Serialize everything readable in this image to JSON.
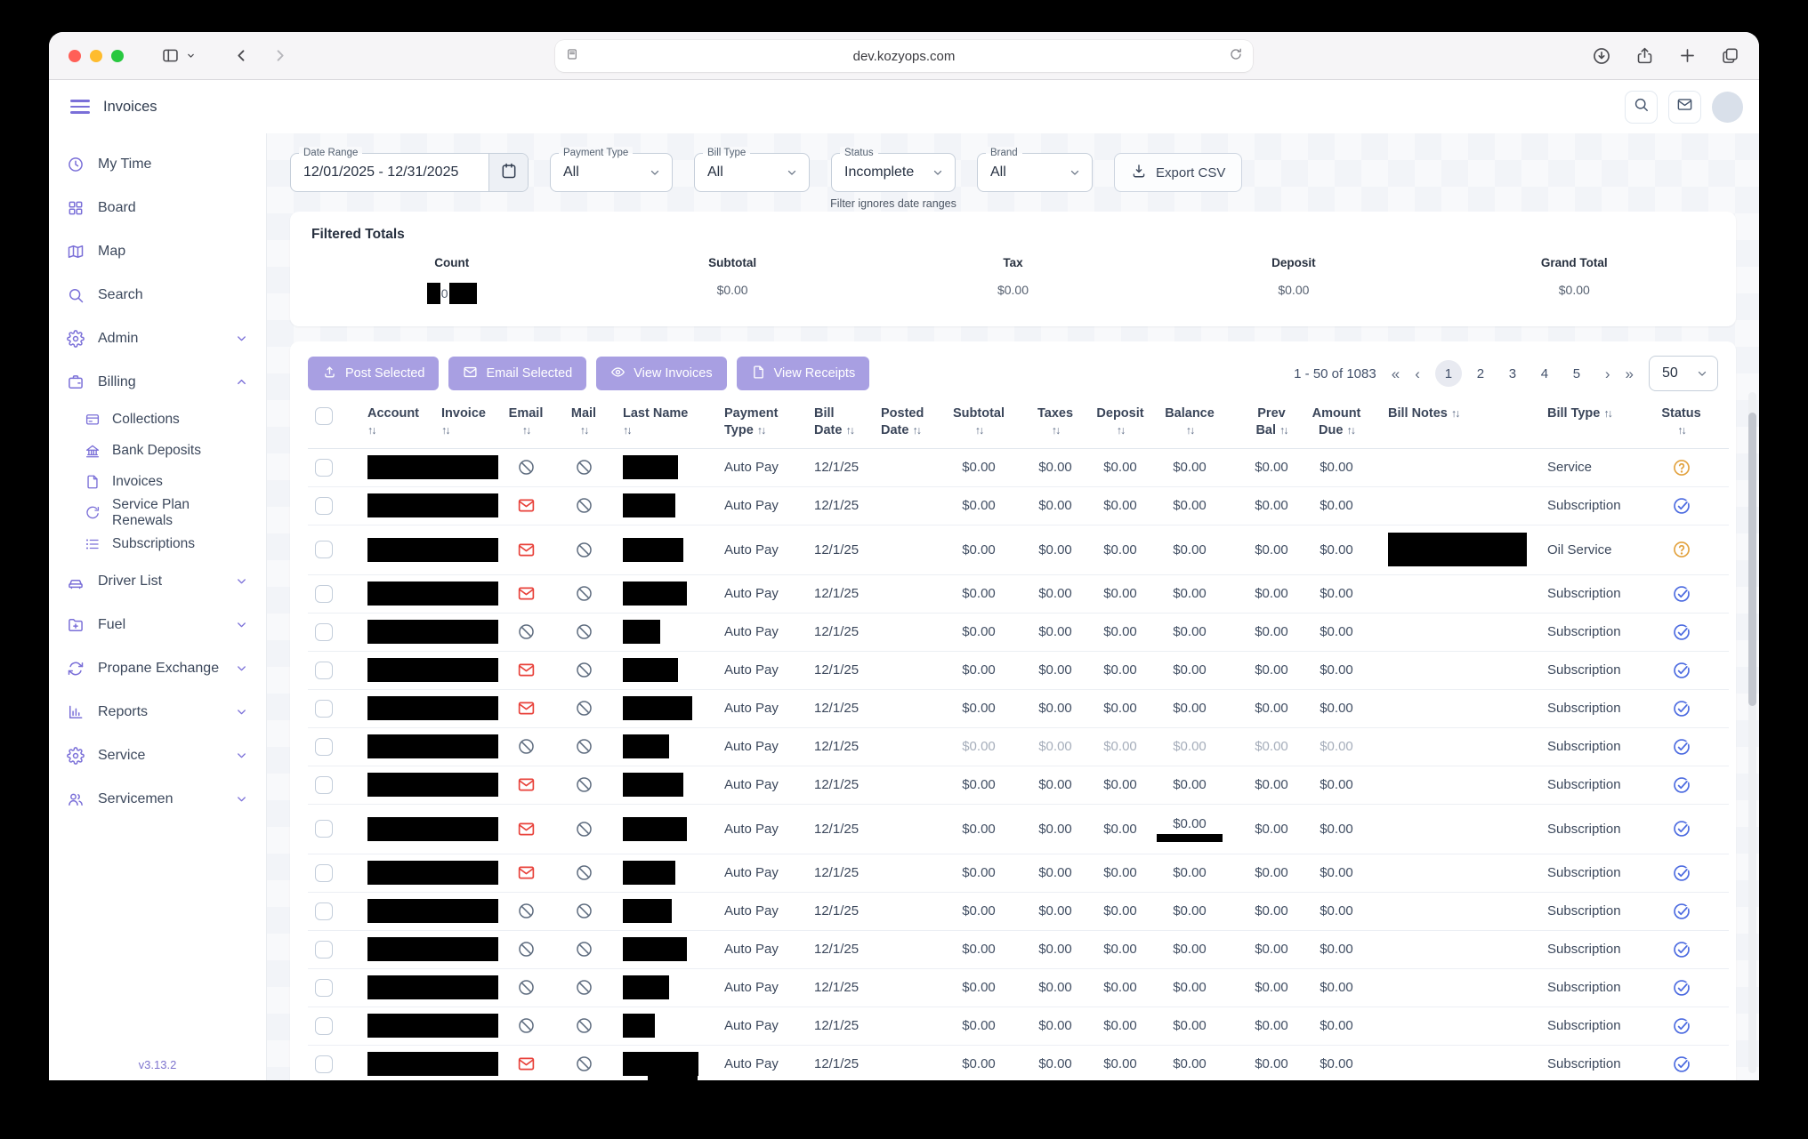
{
  "browser": {
    "url": "dev.kozyops.com"
  },
  "header": {
    "title": "Invoices"
  },
  "sidebar": {
    "version": "v3.13.2",
    "items": [
      {
        "label": "My Time",
        "icon": "clock"
      },
      {
        "label": "Board",
        "icon": "grid"
      },
      {
        "label": "Map",
        "icon": "map"
      },
      {
        "label": "Search",
        "icon": "search"
      },
      {
        "label": "Admin",
        "icon": "gear",
        "chevron": "down"
      },
      {
        "label": "Billing",
        "icon": "wallet",
        "chevron": "up",
        "children": [
          {
            "label": "Collections",
            "icon": "card"
          },
          {
            "label": "Bank Deposits",
            "icon": "bank"
          },
          {
            "label": "Invoices",
            "icon": "file"
          },
          {
            "label": "Service Plan Renewals",
            "icon": "renew"
          },
          {
            "label": "Subscriptions",
            "icon": "list"
          }
        ]
      },
      {
        "label": "Driver List",
        "icon": "car",
        "chevron": "down"
      },
      {
        "label": "Fuel",
        "icon": "folderplus",
        "chevron": "down"
      },
      {
        "label": "Propane Exchange",
        "icon": "refresh",
        "chevron": "down"
      },
      {
        "label": "Reports",
        "icon": "chart",
        "chevron": "down"
      },
      {
        "label": "Service",
        "icon": "gear",
        "chevron": "down"
      },
      {
        "label": "Servicemen",
        "icon": "users",
        "chevron": "down"
      }
    ]
  },
  "filters": {
    "date_range": {
      "label": "Date Range",
      "value": "12/01/2025 - 12/31/2025"
    },
    "payment_type": {
      "label": "Payment Type",
      "value": "All"
    },
    "bill_type": {
      "label": "Bill Type",
      "value": "All"
    },
    "status": {
      "label": "Status",
      "value": "Incomplete",
      "helper": "Filter ignores date ranges"
    },
    "brand": {
      "label": "Brand",
      "value": "All"
    },
    "export_label": "Export CSV"
  },
  "totals": {
    "title": "Filtered Totals",
    "columns": [
      {
        "label": "Count",
        "value": "0",
        "redacted": true
      },
      {
        "label": "Subtotal",
        "value": "$0.00"
      },
      {
        "label": "Tax",
        "value": "$0.00"
      },
      {
        "label": "Deposit",
        "value": "$0.00"
      },
      {
        "label": "Grand Total",
        "value": "$0.00"
      }
    ]
  },
  "toolbar": {
    "buttons": [
      {
        "label": "Post Selected",
        "icon": "upload"
      },
      {
        "label": "Email Selected",
        "icon": "envelope"
      },
      {
        "label": "View Invoices",
        "icon": "eye"
      },
      {
        "label": "View Receipts",
        "icon": "file"
      }
    ]
  },
  "pagination": {
    "range": "1 - 50 of 1083",
    "pages": [
      "1",
      "2",
      "3",
      "4",
      "5"
    ],
    "current": "1",
    "page_size": "50"
  },
  "table": {
    "columns": [
      {
        "key": "select",
        "label": ""
      },
      {
        "key": "account",
        "label": "Account",
        "sortable": true
      },
      {
        "key": "invoice",
        "label": "Invoice",
        "sortable": true
      },
      {
        "key": "email",
        "label": "Email",
        "sortable": true
      },
      {
        "key": "mail",
        "label": "Mail",
        "sortable": true
      },
      {
        "key": "last_name",
        "label": "Last Name",
        "sortable": true
      },
      {
        "key": "payment_type",
        "label": "Payment Type",
        "sortable": true
      },
      {
        "key": "bill_date",
        "label": "Bill Date",
        "sortable": true
      },
      {
        "key": "posted_date",
        "label": "Posted Date",
        "sortable": true
      },
      {
        "key": "subtotal",
        "label": "Subtotal",
        "sortable": true
      },
      {
        "key": "taxes",
        "label": "Taxes",
        "sortable": true
      },
      {
        "key": "deposit",
        "label": "Deposit",
        "sortable": true
      },
      {
        "key": "balance",
        "label": "Balance",
        "sortable": true
      },
      {
        "key": "prev_bal",
        "label": "Prev Bal",
        "sortable": true
      },
      {
        "key": "amount_due",
        "label": "Amount Due",
        "sortable": true
      },
      {
        "key": "bill_notes",
        "label": "Bill Notes",
        "sortable": true
      },
      {
        "key": "bill_type",
        "label": "Bill Type",
        "sortable": true
      },
      {
        "key": "status",
        "label": "Status",
        "sortable": true
      }
    ],
    "rows": [
      {
        "account_redacted": true,
        "email": "blocked",
        "mail": "blocked",
        "last_name_redact_w": 62,
        "payment_type": "Auto Pay",
        "bill_date": "12/1/25",
        "posted_date": "",
        "subtotal": "$0.00",
        "taxes": "$0.00",
        "deposit": "$0.00",
        "balance": "$0.00",
        "prev_bal": "$0.00",
        "amount_due": "$0.00",
        "bill_notes_redacted": false,
        "bill_type": "Service",
        "status": "question"
      },
      {
        "account_redacted": true,
        "email": "mail",
        "mail": "blocked",
        "last_name_redact_w": 59,
        "payment_type": "Auto Pay",
        "bill_date": "12/1/25",
        "posted_date": "",
        "subtotal": "$0.00",
        "taxes": "$0.00",
        "deposit": "$0.00",
        "balance": "$0.00",
        "prev_bal": "$0.00",
        "amount_due": "$0.00",
        "bill_notes_redacted": false,
        "bill_type": "Subscription",
        "status": "check"
      },
      {
        "account_redacted": true,
        "email": "mail",
        "mail": "blocked",
        "last_name_redact_w": 68,
        "payment_type": "Auto Pay",
        "bill_date": "12/1/25",
        "posted_date": "",
        "subtotal": "$0.00",
        "taxes": "$0.00",
        "deposit": "$0.00",
        "balance": "$0.00",
        "prev_bal": "$0.00",
        "amount_due": "$0.00",
        "bill_notes_redacted": true,
        "bill_type": "Oil Service",
        "status": "question",
        "tall": true
      },
      {
        "account_redacted": true,
        "email": "mail",
        "mail": "blocked",
        "last_name_redact_w": 72,
        "payment_type": "Auto Pay",
        "bill_date": "12/1/25",
        "posted_date": "",
        "subtotal": "$0.00",
        "taxes": "$0.00",
        "deposit": "$0.00",
        "balance": "$0.00",
        "prev_bal": "$0.00",
        "amount_due": "$0.00",
        "bill_notes_redacted": false,
        "bill_type": "Subscription",
        "status": "check"
      },
      {
        "account_redacted": true,
        "email": "blocked",
        "mail": "blocked",
        "last_name_redact_w": 42,
        "payment_type": "Auto Pay",
        "bill_date": "12/1/25",
        "posted_date": "",
        "subtotal": "$0.00",
        "taxes": "$0.00",
        "deposit": "$0.00",
        "balance": "$0.00",
        "prev_bal": "$0.00",
        "amount_due": "$0.00",
        "bill_notes_redacted": false,
        "bill_type": "Subscription",
        "status": "check"
      },
      {
        "account_redacted": true,
        "email": "mail",
        "mail": "blocked",
        "last_name_redact_w": 62,
        "payment_type": "Auto Pay",
        "bill_date": "12/1/25",
        "posted_date": "",
        "subtotal": "$0.00",
        "taxes": "$0.00",
        "deposit": "$0.00",
        "balance": "$0.00",
        "prev_bal": "$0.00",
        "amount_due": "$0.00",
        "bill_notes_redacted": false,
        "bill_type": "Subscription",
        "status": "check"
      },
      {
        "account_redacted": true,
        "email": "mail",
        "mail": "blocked",
        "last_name_redact_w": 78,
        "payment_type": "Auto Pay",
        "bill_date": "12/1/25",
        "posted_date": "",
        "subtotal": "$0.00",
        "taxes": "$0.00",
        "deposit": "$0.00",
        "balance": "$0.00",
        "prev_bal": "$0.00",
        "amount_due": "$0.00",
        "bill_notes_redacted": false,
        "bill_type": "Subscription",
        "status": "check"
      },
      {
        "account_redacted": true,
        "email": "blocked",
        "mail": "blocked",
        "last_name_redact_w": 52,
        "payment_type": "Auto Pay",
        "bill_date": "12/1/25",
        "posted_date": "",
        "subtotal": "$0.00",
        "taxes": "$0.00",
        "deposit": "$0.00",
        "balance": "$0.00",
        "prev_bal": "$0.00",
        "amount_due": "$0.00",
        "bill_notes_redacted": false,
        "bill_type": "Subscription",
        "status": "check",
        "muted": true
      },
      {
        "account_redacted": true,
        "email": "mail",
        "mail": "blocked",
        "last_name_redact_w": 68,
        "payment_type": "Auto Pay",
        "bill_date": "12/1/25",
        "posted_date": "",
        "subtotal": "$0.00",
        "taxes": "$0.00",
        "deposit": "$0.00",
        "balance": "$0.00",
        "prev_bal": "$0.00",
        "amount_due": "$0.00",
        "bill_notes_redacted": false,
        "bill_type": "Subscription",
        "status": "check"
      },
      {
        "account_redacted": true,
        "email": "mail",
        "mail": "blocked",
        "last_name_redact_w": 72,
        "payment_type": "Auto Pay",
        "bill_date": "12/1/25",
        "posted_date": "",
        "subtotal": "$0.00",
        "taxes": "$0.00",
        "deposit": "$0.00",
        "balance": "$0.00",
        "prev_bal": "$0.00",
        "amount_due": "$0.00",
        "bill_notes_redacted": false,
        "bill_type": "Subscription",
        "status": "check",
        "balance_redacted": true,
        "tall": true
      },
      {
        "account_redacted": true,
        "email": "mail",
        "mail": "blocked",
        "last_name_redact_w": 59,
        "payment_type": "Auto Pay",
        "bill_date": "12/1/25",
        "posted_date": "",
        "subtotal": "$0.00",
        "taxes": "$0.00",
        "deposit": "$0.00",
        "balance": "$0.00",
        "prev_bal": "$0.00",
        "amount_due": "$0.00",
        "bill_notes_redacted": false,
        "bill_type": "Subscription",
        "status": "check"
      },
      {
        "account_redacted": true,
        "email": "blocked",
        "mail": "blocked",
        "last_name_redact_w": 55,
        "payment_type": "Auto Pay",
        "bill_date": "12/1/25",
        "posted_date": "",
        "subtotal": "$0.00",
        "taxes": "$0.00",
        "deposit": "$0.00",
        "balance": "$0.00",
        "prev_bal": "$0.00",
        "amount_due": "$0.00",
        "bill_notes_redacted": false,
        "bill_type": "Subscription",
        "status": "check"
      },
      {
        "account_redacted": true,
        "email": "blocked",
        "mail": "blocked",
        "last_name_redact_w": 72,
        "payment_type": "Auto Pay",
        "bill_date": "12/1/25",
        "posted_date": "",
        "subtotal": "$0.00",
        "taxes": "$0.00",
        "deposit": "$0.00",
        "balance": "$0.00",
        "prev_bal": "$0.00",
        "amount_due": "$0.00",
        "bill_notes_redacted": false,
        "bill_type": "Subscription",
        "status": "check"
      },
      {
        "account_redacted": true,
        "email": "blocked",
        "mail": "blocked",
        "last_name_redact_w": 52,
        "payment_type": "Auto Pay",
        "bill_date": "12/1/25",
        "posted_date": "",
        "subtotal": "$0.00",
        "taxes": "$0.00",
        "deposit": "$0.00",
        "balance": "$0.00",
        "prev_bal": "$0.00",
        "amount_due": "$0.00",
        "bill_notes_redacted": false,
        "bill_type": "Subscription",
        "status": "check"
      },
      {
        "account_redacted": true,
        "email": "blocked",
        "mail": "blocked",
        "last_name_redact_w": 36,
        "payment_type": "Auto Pay",
        "bill_date": "12/1/25",
        "posted_date": "",
        "subtotal": "$0.00",
        "taxes": "$0.00",
        "deposit": "$0.00",
        "balance": "$0.00",
        "prev_bal": "$0.00",
        "amount_due": "$0.00",
        "bill_notes_redacted": false,
        "bill_type": "Subscription",
        "status": "check"
      },
      {
        "account_redacted": true,
        "email": "mail",
        "mail": "blocked",
        "last_name_redact_w": 85,
        "payment_type": "Auto Pay",
        "bill_date": "12/1/25",
        "posted_date": "",
        "subtotal": "$0.00",
        "taxes": "$0.00",
        "deposit": "$0.00",
        "balance": "$0.00",
        "prev_bal": "$0.00",
        "amount_due": "$0.00",
        "bill_notes_redacted": false,
        "bill_type": "Subscription",
        "status": "check",
        "blob": true
      }
    ]
  },
  "colors": {
    "accent_purple": "#7a6fd8",
    "button_purple": "#a89fe2",
    "status_check_blue": "#4b6ae0",
    "status_question_orange": "#e2a23e",
    "email_red": "#e8413a",
    "blocked_gray": "#5d6b7e"
  }
}
